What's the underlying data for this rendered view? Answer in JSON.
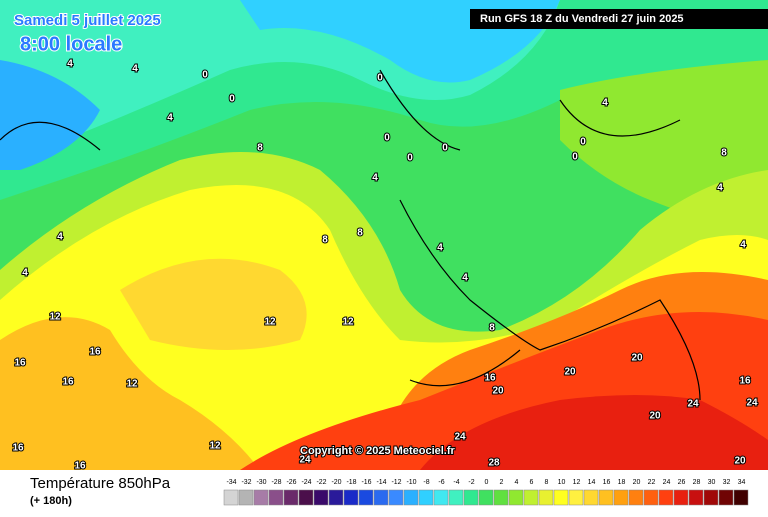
{
  "header": {
    "date": "Samedi 5 juillet 2025",
    "time": "8:00 locale",
    "run": "Run GFS 18 Z du Vendredi 27 juin 2025"
  },
  "copyright": "Copyright © 2025 Meteociel.fr",
  "footer": {
    "title": "Température 850hPa",
    "lead": "(+ 180h)"
  },
  "scale": {
    "labels": [
      -34,
      -32,
      -30,
      -28,
      -26,
      -24,
      -22,
      -20,
      -18,
      -16,
      -14,
      -12,
      -10,
      -8,
      -6,
      -4,
      -2,
      0,
      2,
      4,
      6,
      8,
      10,
      12,
      14,
      16,
      18,
      20,
      22,
      24,
      26,
      28,
      30,
      32,
      34
    ],
    "colors": [
      "#d4d4d4",
      "#b4b4b4",
      "#a77ca7",
      "#8a4f8a",
      "#6a2a6a",
      "#4b0f4b",
      "#3a0a6a",
      "#2a1a9a",
      "#1a2ac8",
      "#1a4ae0",
      "#2a6af0",
      "#3a8aff",
      "#2ab0ff",
      "#30d0ff",
      "#40e8f0",
      "#40f0c0",
      "#30e890",
      "#40e060",
      "#60e040",
      "#90e830",
      "#c0f030",
      "#e8f030",
      "#ffff20",
      "#fff040",
      "#ffd830",
      "#ffc020",
      "#ffa010",
      "#ff8010",
      "#ff6010",
      "#ff4010",
      "#e82010",
      "#c81010",
      "#a00808",
      "#700404",
      "#400000"
    ]
  },
  "contour_labels": [
    "4",
    "4",
    "4",
    "4",
    "4",
    "4",
    "4",
    "4",
    "4",
    "4",
    "4",
    "0",
    "0",
    "0",
    "0",
    "0",
    "0",
    "0",
    "0",
    "8",
    "8",
    "8",
    "8",
    "8",
    "12",
    "12",
    "12",
    "12",
    "12",
    "16",
    "16",
    "16",
    "16",
    "16",
    "16",
    "16",
    "20",
    "20",
    "20",
    "20",
    "20",
    "24",
    "24",
    "24",
    "24",
    "28"
  ]
}
